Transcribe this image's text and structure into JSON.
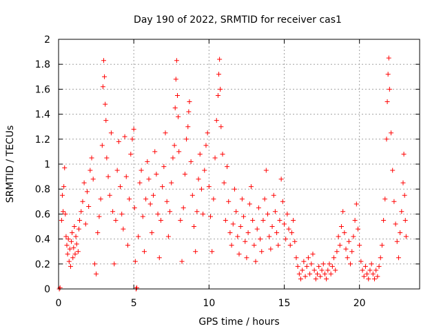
{
  "chart_data": {
    "type": "scatter",
    "title": "Day 190 of 2022, SRMTID for receiver cas1",
    "xlabel": "GPS time / hours",
    "ylabel": "SRMTID / TECUs",
    "xlim": [
      0,
      24
    ],
    "ylim": [
      0,
      2
    ],
    "x_ticks": [
      0,
      5,
      10,
      15,
      20
    ],
    "x_tick_labels": [
      "0",
      "5",
      "10",
      "15",
      "20"
    ],
    "y_ticks": [
      0,
      0.2,
      0.4,
      0.6,
      0.8,
      1,
      1.2,
      1.4,
      1.6,
      1.8,
      2
    ],
    "y_tick_labels": [
      "0",
      "0.2",
      "0.4",
      "0.6",
      "0.8",
      "1",
      "1.2",
      "1.4",
      "1.6",
      "1.8",
      "2"
    ],
    "grid": true,
    "marker": "+",
    "color": "#ff0000",
    "series": [
      {
        "name": "SRMTID",
        "points": [
          [
            0.05,
            0.0
          ],
          [
            0.1,
            0.01
          ],
          [
            0.2,
            0.55
          ],
          [
            0.25,
            0.75
          ],
          [
            0.3,
            0.62
          ],
          [
            0.35,
            0.82
          ],
          [
            0.4,
            0.97
          ],
          [
            0.45,
            0.6
          ],
          [
            0.5,
            0.42
          ],
          [
            0.55,
            0.35
          ],
          [
            0.6,
            0.28
          ],
          [
            0.65,
            0.4
          ],
          [
            0.7,
            0.22
          ],
          [
            0.75,
            0.32
          ],
          [
            0.8,
            0.18
          ],
          [
            0.85,
            0.38
          ],
          [
            0.9,
            0.45
          ],
          [
            0.95,
            0.25
          ],
          [
            1.0,
            0.33
          ],
          [
            1.05,
            0.5
          ],
          [
            1.1,
            0.28
          ],
          [
            1.15,
            0.42
          ],
          [
            1.2,
            0.36
          ],
          [
            1.3,
            0.3
          ],
          [
            1.35,
            0.48
          ],
          [
            1.4,
            0.55
          ],
          [
            1.5,
            0.62
          ],
          [
            1.6,
            0.7
          ],
          [
            1.7,
            0.85
          ],
          [
            1.8,
            0.52
          ],
          [
            1.9,
            0.78
          ],
          [
            2.0,
            0.66
          ],
          [
            2.1,
            0.95
          ],
          [
            2.2,
            1.05
          ],
          [
            2.3,
            0.88
          ],
          [
            2.4,
            0.2
          ],
          [
            2.5,
            0.12
          ],
          [
            2.6,
            0.45
          ],
          [
            2.7,
            0.58
          ],
          [
            2.8,
            0.72
          ],
          [
            2.9,
            1.15
          ],
          [
            2.95,
            1.62
          ],
          [
            3.0,
            1.83
          ],
          [
            3.05,
            1.7
          ],
          [
            3.1,
            1.48
          ],
          [
            3.15,
            1.35
          ],
          [
            3.2,
            1.05
          ],
          [
            3.3,
            0.9
          ],
          [
            3.4,
            0.75
          ],
          [
            3.5,
            1.25
          ],
          [
            3.6,
            0.62
          ],
          [
            3.7,
            0.2
          ],
          [
            3.8,
            0.55
          ],
          [
            3.9,
            0.95
          ],
          [
            4.0,
            1.18
          ],
          [
            4.1,
            0.82
          ],
          [
            4.2,
            0.6
          ],
          [
            4.3,
            0.48
          ],
          [
            4.4,
            1.22
          ],
          [
            4.5,
            0.9
          ],
          [
            4.6,
            0.35
          ],
          [
            4.7,
            0.72
          ],
          [
            4.8,
            1.08
          ],
          [
            4.9,
            1.2
          ],
          [
            5.0,
            1.28
          ],
          [
            5.05,
            0.65
          ],
          [
            5.1,
            0.22
          ],
          [
            5.15,
            0.0
          ],
          [
            5.2,
            0.01
          ],
          [
            5.3,
            0.42
          ],
          [
            5.4,
            0.85
          ],
          [
            5.5,
            0.95
          ],
          [
            5.6,
            0.58
          ],
          [
            5.7,
            0.3
          ],
          [
            5.8,
            0.72
          ],
          [
            5.9,
            1.02
          ],
          [
            6.0,
            0.88
          ],
          [
            6.1,
            0.68
          ],
          [
            6.2,
            0.45
          ],
          [
            6.3,
            0.75
          ],
          [
            6.4,
            1.1
          ],
          [
            6.5,
            0.92
          ],
          [
            6.6,
            0.6
          ],
          [
            6.7,
            0.25
          ],
          [
            6.8,
            0.55
          ],
          [
            6.9,
            0.82
          ],
          [
            7.0,
            0.98
          ],
          [
            7.1,
            1.25
          ],
          [
            7.2,
            0.7
          ],
          [
            7.3,
            0.42
          ],
          [
            7.4,
            0.62
          ],
          [
            7.5,
            0.85
          ],
          [
            7.6,
            1.05
          ],
          [
            7.7,
            1.15
          ],
          [
            7.75,
            1.45
          ],
          [
            7.8,
            1.68
          ],
          [
            7.85,
            1.83
          ],
          [
            7.9,
            1.55
          ],
          [
            7.95,
            1.38
          ],
          [
            8.0,
            1.1
          ],
          [
            8.1,
            0.55
          ],
          [
            8.2,
            0.22
          ],
          [
            8.3,
            0.65
          ],
          [
            8.4,
            0.92
          ],
          [
            8.5,
            1.2
          ],
          [
            8.6,
            1.3
          ],
          [
            8.65,
            1.42
          ],
          [
            8.7,
            1.5
          ],
          [
            8.8,
            1.02
          ],
          [
            8.9,
            0.75
          ],
          [
            9.0,
            0.5
          ],
          [
            9.1,
            0.3
          ],
          [
            9.2,
            0.62
          ],
          [
            9.3,
            0.88
          ],
          [
            9.4,
            1.08
          ],
          [
            9.5,
            0.8
          ],
          [
            9.6,
            0.6
          ],
          [
            9.7,
            0.95
          ],
          [
            9.8,
            1.15
          ],
          [
            9.9,
            1.25
          ],
          [
            10.0,
            0.82
          ],
          [
            10.1,
            0.58
          ],
          [
            10.2,
            0.3
          ],
          [
            10.3,
            0.72
          ],
          [
            10.4,
            1.05
          ],
          [
            10.5,
            1.35
          ],
          [
            10.6,
            1.55
          ],
          [
            10.65,
            1.72
          ],
          [
            10.7,
            1.84
          ],
          [
            10.75,
            1.6
          ],
          [
            10.8,
            1.3
          ],
          [
            10.9,
            1.08
          ],
          [
            11.0,
            0.85
          ],
          [
            11.1,
            0.55
          ],
          [
            11.2,
            0.98
          ],
          [
            11.3,
            0.7
          ],
          [
            11.4,
            0.45
          ],
          [
            11.5,
            0.35
          ],
          [
            11.6,
            0.52
          ],
          [
            11.7,
            0.8
          ],
          [
            11.8,
            0.62
          ],
          [
            11.9,
            0.42
          ],
          [
            12.0,
            0.28
          ],
          [
            12.1,
            0.5
          ],
          [
            12.2,
            0.72
          ],
          [
            12.3,
            0.58
          ],
          [
            12.4,
            0.38
          ],
          [
            12.5,
            0.25
          ],
          [
            12.6,
            0.45
          ],
          [
            12.7,
            0.68
          ],
          [
            12.8,
            0.82
          ],
          [
            12.9,
            0.55
          ],
          [
            13.0,
            0.35
          ],
          [
            13.1,
            0.22
          ],
          [
            13.2,
            0.48
          ],
          [
            13.3,
            0.65
          ],
          [
            13.4,
            0.4
          ],
          [
            13.5,
            0.3
          ],
          [
            13.6,
            0.55
          ],
          [
            13.7,
            0.72
          ],
          [
            13.8,
            0.95
          ],
          [
            13.9,
            0.6
          ],
          [
            14.0,
            0.42
          ],
          [
            14.1,
            0.32
          ],
          [
            14.2,
            0.5
          ],
          [
            14.3,
            0.75
          ],
          [
            14.4,
            0.62
          ],
          [
            14.5,
            0.45
          ],
          [
            14.6,
            0.35
          ],
          [
            14.7,
            0.55
          ],
          [
            14.8,
            0.88
          ],
          [
            14.9,
            0.7
          ],
          [
            15.0,
            0.52
          ],
          [
            15.1,
            0.4
          ],
          [
            15.2,
            0.6
          ],
          [
            15.3,
            0.48
          ],
          [
            15.4,
            0.35
          ],
          [
            15.5,
            0.45
          ],
          [
            15.6,
            0.55
          ],
          [
            15.7,
            0.38
          ],
          [
            15.8,
            0.25
          ],
          [
            15.9,
            0.18
          ],
          [
            16.0,
            0.12
          ],
          [
            16.1,
            0.08
          ],
          [
            16.2,
            0.15
          ],
          [
            16.3,
            0.22
          ],
          [
            16.4,
            0.1
          ],
          [
            16.5,
            0.18
          ],
          [
            16.6,
            0.25
          ],
          [
            16.7,
            0.12
          ],
          [
            16.8,
            0.2
          ],
          [
            16.9,
            0.28
          ],
          [
            17.0,
            0.15
          ],
          [
            17.1,
            0.08
          ],
          [
            17.2,
            0.12
          ],
          [
            17.3,
            0.18
          ],
          [
            17.4,
            0.1
          ],
          [
            17.5,
            0.15
          ],
          [
            17.6,
            0.2
          ],
          [
            17.7,
            0.12
          ],
          [
            17.8,
            0.08
          ],
          [
            17.9,
            0.15
          ],
          [
            18.0,
            0.2
          ],
          [
            18.1,
            0.12
          ],
          [
            18.2,
            0.18
          ],
          [
            18.3,
            0.25
          ],
          [
            18.4,
            0.15
          ],
          [
            18.5,
            0.3
          ],
          [
            18.6,
            0.42
          ],
          [
            18.7,
            0.35
          ],
          [
            18.8,
            0.5
          ],
          [
            18.9,
            0.62
          ],
          [
            19.0,
            0.45
          ],
          [
            19.1,
            0.32
          ],
          [
            19.2,
            0.25
          ],
          [
            19.3,
            0.38
          ],
          [
            19.4,
            0.2
          ],
          [
            19.5,
            0.3
          ],
          [
            19.6,
            0.42
          ],
          [
            19.7,
            0.55
          ],
          [
            19.8,
            0.68
          ],
          [
            19.9,
            0.48
          ],
          [
            20.0,
            0.35
          ],
          [
            20.1,
            0.22
          ],
          [
            20.2,
            0.15
          ],
          [
            20.3,
            0.1
          ],
          [
            20.4,
            0.18
          ],
          [
            20.5,
            0.12
          ],
          [
            20.6,
            0.08
          ],
          [
            20.7,
            0.15
          ],
          [
            20.8,
            0.2
          ],
          [
            20.9,
            0.12
          ],
          [
            21.0,
            0.08
          ],
          [
            21.1,
            0.15
          ],
          [
            21.2,
            0.1
          ],
          [
            21.3,
            0.18
          ],
          [
            21.4,
            0.25
          ],
          [
            21.5,
            0.35
          ],
          [
            21.6,
            0.55
          ],
          [
            21.7,
            0.72
          ],
          [
            21.8,
            1.2
          ],
          [
            21.85,
            1.5
          ],
          [
            21.9,
            1.72
          ],
          [
            21.95,
            1.85
          ],
          [
            22.0,
            1.6
          ],
          [
            22.1,
            1.25
          ],
          [
            22.2,
            0.95
          ],
          [
            22.3,
            0.7
          ],
          [
            22.4,
            0.52
          ],
          [
            22.5,
            0.38
          ],
          [
            22.6,
            0.25
          ],
          [
            22.7,
            0.45
          ],
          [
            22.8,
            0.62
          ],
          [
            22.9,
            0.85
          ],
          [
            22.95,
            1.08
          ],
          [
            23.0,
            0.75
          ],
          [
            23.05,
            0.55
          ],
          [
            23.1,
            0.42
          ]
        ]
      }
    ]
  }
}
